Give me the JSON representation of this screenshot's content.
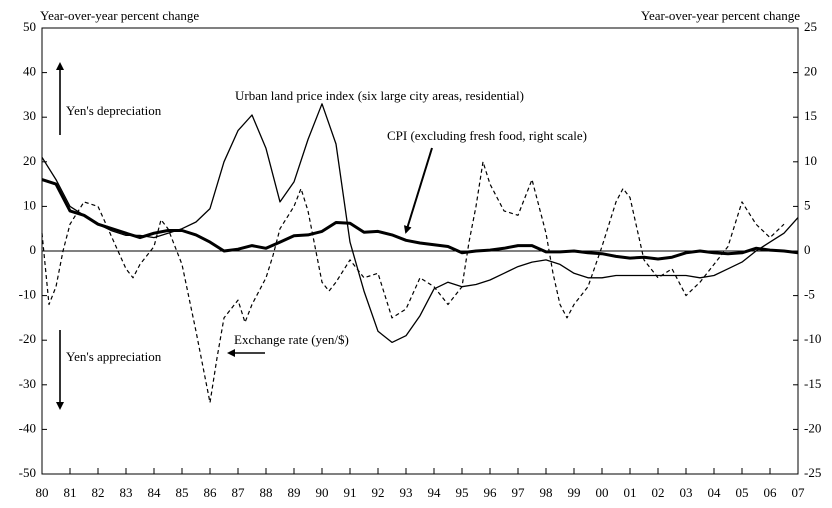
{
  "chart_data": {
    "type": "line",
    "ylabel": "Year-over-year percent change",
    "y2label": "Year-over-year percent change",
    "annotations": [
      "Yen's depreciation",
      "Yen's appreciation"
    ],
    "xlim": [
      1980,
      2007
    ],
    "xticks": [
      {
        "value": 1980,
        "label": "80"
      },
      {
        "value": 1981,
        "label": "81"
      },
      {
        "value": 1982,
        "label": "82"
      },
      {
        "value": 1983,
        "label": "83"
      },
      {
        "value": 1984,
        "label": "84"
      },
      {
        "value": 1985,
        "label": "85"
      },
      {
        "value": 1986,
        "label": "86"
      },
      {
        "value": 1987,
        "label": "87"
      },
      {
        "value": 1988,
        "label": "88"
      },
      {
        "value": 1989,
        "label": "89"
      },
      {
        "value": 1990,
        "label": "90"
      },
      {
        "value": 1991,
        "label": "91"
      },
      {
        "value": 1992,
        "label": "92"
      },
      {
        "value": 1993,
        "label": "93"
      },
      {
        "value": 1994,
        "label": "94"
      },
      {
        "value": 1995,
        "label": "95"
      },
      {
        "value": 1996,
        "label": "96"
      },
      {
        "value": 1997,
        "label": "97"
      },
      {
        "value": 1998,
        "label": "98"
      },
      {
        "value": 1999,
        "label": "99"
      },
      {
        "value": 2000,
        "label": "00"
      },
      {
        "value": 2001,
        "label": "01"
      },
      {
        "value": 2002,
        "label": "02"
      },
      {
        "value": 2003,
        "label": "03"
      },
      {
        "value": 2004,
        "label": "04"
      },
      {
        "value": 2005,
        "label": "05"
      },
      {
        "value": 2006,
        "label": "06"
      },
      {
        "value": 2007,
        "label": "07"
      }
    ],
    "ylim": [
      -50,
      50
    ],
    "yticks": [
      -50,
      -40,
      -30,
      -20,
      -10,
      0,
      10,
      20,
      30,
      40,
      50
    ],
    "y2lim": [
      -25,
      25
    ],
    "y2ticks": [
      -25,
      -20,
      -15,
      -10,
      -5,
      0,
      5,
      10,
      15,
      20,
      25
    ],
    "zero_line": 0,
    "series": [
      {
        "name": "Urban land price index (six large city areas, residential)",
        "color": "#000",
        "style": "solid",
        "width": 1.3,
        "x": [
          1980,
          1980.5,
          1981,
          1981.5,
          1982,
          1982.5,
          1983,
          1983.5,
          1984,
          1984.5,
          1985,
          1985.5,
          1986,
          1986.5,
          1987,
          1987.5,
          1988,
          1988.5,
          1989,
          1989.5,
          1990,
          1990.5,
          1991,
          1991.5,
          1992,
          1992.5,
          1993,
          1993.5,
          1994,
          1994.5,
          1995,
          1995.5,
          1996,
          1996.5,
          1997,
          1997.5,
          1998,
          1998.5,
          1999,
          1999.5,
          2000,
          2000.5,
          2001,
          2001.5,
          2002,
          2002.5,
          2003,
          2003.5,
          2004,
          2004.5,
          2005,
          2005.5,
          2006,
          2006.5,
          2007
        ],
        "values": [
          21,
          16,
          10,
          8,
          6,
          4.5,
          3.5,
          3.5,
          3,
          4,
          5,
          6.5,
          9.5,
          20,
          27,
          30.5,
          23,
          11,
          15.5,
          25,
          33,
          24,
          2,
          -9,
          -18,
          -20.5,
          -19,
          -14.5,
          -8.5,
          -7,
          -8,
          -7.5,
          -6.5,
          -5,
          -3.5,
          -2.5,
          -2,
          -3,
          -5,
          -6,
          -6,
          -5.5,
          -5.5,
          -5.5,
          -5.5,
          -5.5,
          -5.5,
          -6,
          -5.5,
          -4,
          -2.5,
          0,
          2,
          4,
          7.5
        ]
      },
      {
        "name": "Exchange rate (yen/$)",
        "color": "#000",
        "style": "dashed",
        "width": 1.2,
        "x": [
          1980,
          1980.25,
          1980.5,
          1980.75,
          1981,
          1981.5,
          1982,
          1982.5,
          1983,
          1983.25,
          1983.5,
          1984,
          1984.25,
          1984.5,
          1985,
          1985.5,
          1986,
          1986.25,
          1986.5,
          1987,
          1987.25,
          1987.5,
          1988,
          1988.25,
          1988.5,
          1989,
          1989.25,
          1989.5,
          1990,
          1990.25,
          1990.5,
          1991,
          1991.5,
          1992,
          1992.5,
          1993,
          1993.5,
          1994,
          1994.5,
          1995,
          1995.25,
          1995.5,
          1995.75,
          1996,
          1996.5,
          1997,
          1997.5,
          1998,
          1998.25,
          1998.5,
          1998.75,
          1999,
          1999.5,
          2000,
          2000.5,
          2000.75,
          2001,
          2001.5,
          2002,
          2002.5,
          2003,
          2003.5,
          2004,
          2004.5,
          2005,
          2005.5,
          2006,
          2006.5
        ],
        "values": [
          4,
          -12,
          -8,
          0,
          6,
          11,
          10,
          3,
          -4,
          -6,
          -3,
          1,
          7,
          5,
          -3,
          -18,
          -34,
          -24,
          -15,
          -11,
          -16,
          -12,
          -6,
          -1,
          5,
          10,
          14,
          9,
          -7,
          -9,
          -7,
          -2,
          -6,
          -5,
          -15,
          -13,
          -6,
          -8,
          -12,
          -8,
          2,
          10,
          20,
          15,
          9,
          8,
          16,
          4,
          -5,
          -12,
          -15,
          -12,
          -8,
          1,
          11,
          14,
          12,
          -2,
          -6,
          -4,
          -10,
          -7,
          -3,
          1,
          11,
          6,
          3,
          6
        ]
      },
      {
        "name": "CPI (excluding fresh food, right scale)",
        "color": "#000",
        "style": "solid",
        "width": 3,
        "axis": "y2",
        "x": [
          1980,
          1980.5,
          1981,
          1981.5,
          1982,
          1982.5,
          1983,
          1983.5,
          1984,
          1984.5,
          1985,
          1985.5,
          1986,
          1986.5,
          1987,
          1987.5,
          1988,
          1988.5,
          1989,
          1989.5,
          1990,
          1990.5,
          1991,
          1991.5,
          1992,
          1992.5,
          1993,
          1993.5,
          1994,
          1994.5,
          1995,
          1995.5,
          1996,
          1996.5,
          1997,
          1997.5,
          1998,
          1998.5,
          1999,
          1999.5,
          2000,
          2000.5,
          2001,
          2001.5,
          2002,
          2002.5,
          2003,
          2003.5,
          2004,
          2004.5,
          2005,
          2005.5,
          2006,
          2006.5,
          2007
        ],
        "values": [
          8,
          7.5,
          4.5,
          4,
          3,
          2.5,
          2,
          1.5,
          2,
          2.3,
          2.3,
          1.8,
          1,
          0,
          0.2,
          0.6,
          0.3,
          1,
          1.7,
          1.8,
          2.2,
          3.2,
          3.1,
          2.1,
          2.2,
          1.8,
          1.2,
          0.9,
          0.7,
          0.5,
          -0.2,
          0,
          0.1,
          0.3,
          0.6,
          0.6,
          -0.1,
          -0.1,
          0,
          -0.2,
          -0.3,
          -0.6,
          -0.8,
          -0.7,
          -0.9,
          -0.7,
          -0.2,
          0,
          -0.2,
          -0.3,
          -0.2,
          0.3,
          0.1,
          0,
          -0.2
        ]
      }
    ]
  }
}
